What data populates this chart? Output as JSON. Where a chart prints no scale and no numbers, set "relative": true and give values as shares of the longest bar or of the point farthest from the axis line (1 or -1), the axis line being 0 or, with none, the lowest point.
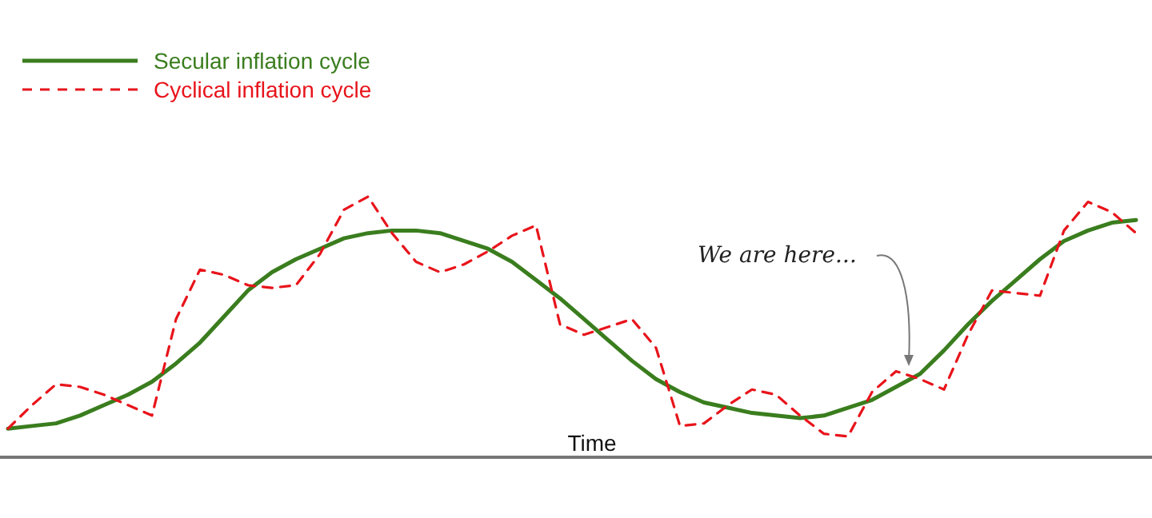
{
  "chart_data": {
    "type": "line",
    "relative": true,
    "xlabel": "Time",
    "legend": "top left",
    "categories": [
      null,
      null,
      null,
      null,
      null,
      null,
      null,
      null,
      null,
      null,
      null,
      null,
      null,
      null,
      null,
      null,
      null,
      null,
      null,
      null,
      null,
      null,
      null,
      null,
      null,
      null,
      null,
      null,
      null,
      null,
      null,
      null,
      null,
      null,
      null,
      null,
      null,
      null,
      null,
      null,
      null,
      null,
      null,
      null,
      null,
      null,
      null,
      null
    ],
    "series": [
      {
        "name": "Secular inflation cycle",
        "color": "#3a7d1e",
        "line_style": "solid",
        "values": [
          0.11,
          0.12,
          0.13,
          0.16,
          0.2,
          0.24,
          0.29,
          0.36,
          0.44,
          0.54,
          0.64,
          0.71,
          0.76,
          0.8,
          0.84,
          0.86,
          0.87,
          0.87,
          0.86,
          0.83,
          0.8,
          0.75,
          0.68,
          0.61,
          0.53,
          0.45,
          0.37,
          0.3,
          0.25,
          0.21,
          0.19,
          0.17,
          0.16,
          0.15,
          0.16,
          0.19,
          0.22,
          0.27,
          0.32,
          0.41,
          0.51,
          0.6,
          0.68,
          0.76,
          0.83,
          0.87,
          0.9,
          0.91
        ]
      },
      {
        "name": "Cyclical inflation cycle",
        "color": "#e8141b",
        "line_style": "dashed",
        "values": [
          0.11,
          0.2,
          0.28,
          0.27,
          0.24,
          0.2,
          0.16,
          0.53,
          0.72,
          0.7,
          0.66,
          0.65,
          0.66,
          0.78,
          0.95,
          1,
          0.86,
          0.75,
          0.71,
          0.74,
          0.79,
          0.85,
          0.89,
          0.51,
          0.47,
          0.5,
          0.53,
          0.42,
          0.12,
          0.13,
          0.2,
          0.26,
          0.24,
          0.16,
          0.09,
          0.08,
          0.25,
          0.33,
          0.3,
          0.26,
          0.47,
          0.64,
          0.63,
          0.62,
          0.87,
          0.98,
          0.94,
          0.86
        ]
      }
    ],
    "annotations": [
      "We are here..."
    ]
  }
}
